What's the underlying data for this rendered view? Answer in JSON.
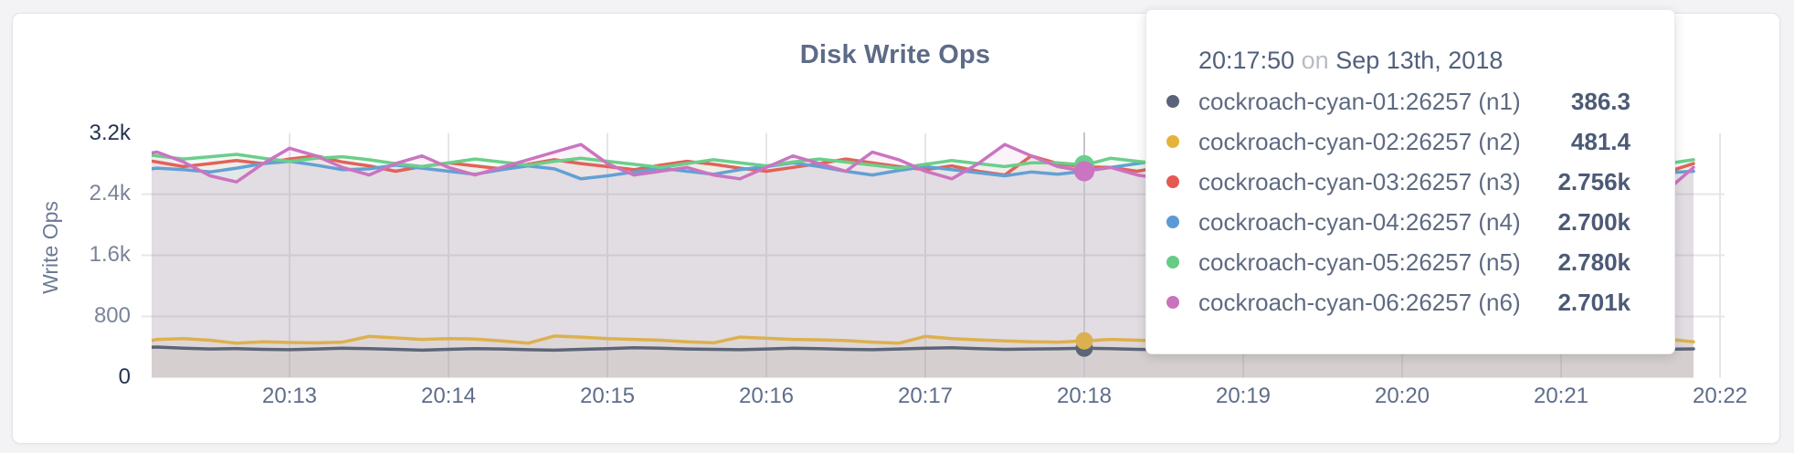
{
  "card": {
    "background": "#ffffff"
  },
  "chart": {
    "title": "Disk Write Ops",
    "y_axis": {
      "label": "Write Ops",
      "ticks": [
        {
          "label": "3.2k",
          "value": 3200,
          "emphasis": true
        },
        {
          "label": "2.4k",
          "value": 2400,
          "emphasis": false
        },
        {
          "label": "1.6k",
          "value": 1600,
          "emphasis": false
        },
        {
          "label": "800",
          "value": 800,
          "emphasis": false
        },
        {
          "label": "0",
          "value": 0,
          "emphasis": true
        }
      ]
    },
    "x_axis": {
      "ticks": [
        "20:13",
        "20:14",
        "20:15",
        "20:16",
        "20:17",
        "20:18",
        "20:19",
        "20:20",
        "20:21",
        "20:22"
      ]
    }
  },
  "tooltip": {
    "time": "20:17:50",
    "on_word": "on",
    "date": "Sep 13th, 2018",
    "rows": [
      {
        "name": "cockroach-cyan-01:26257 (n1)",
        "value": "386.3",
        "color": "#5a6379"
      },
      {
        "name": "cockroach-cyan-02:26257 (n2)",
        "value": "481.4",
        "color": "#e5b33c"
      },
      {
        "name": "cockroach-cyan-03:26257 (n3)",
        "value": "2.756k",
        "color": "#e25a52"
      },
      {
        "name": "cockroach-cyan-04:26257 (n4)",
        "value": "2.700k",
        "color": "#5b9bd3"
      },
      {
        "name": "cockroach-cyan-05:26257 (n5)",
        "value": "2.780k",
        "color": "#66cc85"
      },
      {
        "name": "cockroach-cyan-06:26257 (n6)",
        "value": "2.701k",
        "color": "#c873be"
      }
    ]
  },
  "chart_data": {
    "type": "line",
    "title": "Disk Write Ops",
    "xlabel": "",
    "ylabel": "Write Ops",
    "ylim": [
      0,
      3200
    ],
    "grid": true,
    "x_start_time": "20:12:00",
    "x_interval_seconds": 10,
    "x_tick_labels": [
      "20:13",
      "20:14",
      "20:15",
      "20:16",
      "20:17",
      "20:18",
      "20:19",
      "20:20",
      "20:21",
      "20:22"
    ],
    "hover": {
      "index": 36,
      "time": "20:17:50",
      "date": "Sep 13th, 2018",
      "values": {
        "n1": 386.3,
        "n2": 481.4,
        "n3": 2756,
        "n4": 2700,
        "n5": 2780,
        "n6": 2701
      }
    },
    "series": [
      {
        "name": "cockroach-cyan-01:26257 (n1)",
        "color": "#5c6578",
        "dot_radius": 9.5,
        "values": [
          390,
          400,
          385,
          375,
          380,
          370,
          365,
          375,
          385,
          380,
          370,
          360,
          370,
          380,
          375,
          365,
          360,
          370,
          380,
          390,
          385,
          375,
          370,
          365,
          375,
          385,
          380,
          370,
          365,
          375,
          385,
          390,
          380,
          370,
          375,
          378,
          386.3,
          380,
          370,
          365,
          375,
          385,
          380,
          370,
          365,
          370,
          380,
          390,
          385,
          375,
          370,
          365,
          375,
          385,
          398,
          405,
          390,
          380,
          372,
          376
        ]
      },
      {
        "name": "cockroach-cyan-02:26257 (n2)",
        "color": "#ddb04f",
        "dot_radius": 9.5,
        "values": [
          430,
          500,
          510,
          490,
          450,
          470,
          460,
          455,
          465,
          540,
          520,
          500,
          510,
          505,
          480,
          450,
          545,
          530,
          510,
          500,
          490,
          470,
          455,
          530,
          515,
          500,
          495,
          485,
          465,
          450,
          540,
          510,
          495,
          480,
          470,
          465,
          481.4,
          500,
          490,
          480,
          470,
          460,
          520,
          505,
          490,
          480,
          470,
          520,
          500,
          485,
          470,
          460,
          510,
          525,
          545,
          500,
          480,
          530,
          505,
          470
        ]
      },
      {
        "name": "cockroach-cyan-03:26257 (n3)",
        "color": "#e2625a",
        "dot_radius": 11,
        "values": [
          2880,
          2820,
          2760,
          2800,
          2840,
          2800,
          2860,
          2900,
          2820,
          2770,
          2700,
          2760,
          2810,
          2770,
          2730,
          2790,
          2850,
          2800,
          2760,
          2720,
          2780,
          2830,
          2790,
          2740,
          2700,
          2750,
          2800,
          2860,
          2810,
          2760,
          2720,
          2770,
          2700,
          2650,
          2900,
          2800,
          2756,
          2750,
          2700,
          2760,
          2820,
          2770,
          2730,
          2790,
          2840,
          2800,
          2750,
          2710,
          2770,
          2830,
          2780,
          2740,
          2700,
          2760,
          2810,
          2760,
          2720,
          2780,
          2690,
          2800
        ]
      },
      {
        "name": "cockroach-cyan-04:26257 (n4)",
        "color": "#63a0d4",
        "dot_radius": 11,
        "values": [
          2700,
          2740,
          2720,
          2690,
          2740,
          2800,
          2830,
          2780,
          2720,
          2730,
          2780,
          2740,
          2700,
          2660,
          2720,
          2770,
          2730,
          2600,
          2640,
          2690,
          2740,
          2700,
          2660,
          2720,
          2760,
          2810,
          2760,
          2700,
          2650,
          2710,
          2760,
          2720,
          2680,
          2640,
          2690,
          2660,
          2700,
          2750,
          2800,
          2850,
          2790,
          2730,
          2680,
          2640,
          2700,
          2750,
          2710,
          2670,
          2720,
          2770,
          2730,
          2690,
          2650,
          2700,
          2740,
          2700,
          2660,
          2710,
          2680,
          2700
        ]
      },
      {
        "name": "cockroach-cyan-05:26257 (n5)",
        "color": "#6bce8b",
        "dot_radius": 11,
        "values": [
          2940,
          2900,
          2860,
          2890,
          2920,
          2870,
          2830,
          2870,
          2890,
          2850,
          2800,
          2760,
          2810,
          2860,
          2820,
          2780,
          2830,
          2870,
          2830,
          2790,
          2750,
          2800,
          2850,
          2810,
          2770,
          2820,
          2860,
          2820,
          2780,
          2740,
          2790,
          2840,
          2800,
          2760,
          2810,
          2810,
          2780,
          2870,
          2830,
          2790,
          2750,
          2800,
          2840,
          2800,
          2760,
          2810,
          2850,
          2810,
          2770,
          2820,
          2860,
          2820,
          2780,
          2740,
          2790,
          2830,
          2790,
          2750,
          2800,
          2850
        ]
      },
      {
        "name": "cockroach-cyan-06:26257 (n6)",
        "color": "#cb74c1",
        "dot_radius": 11,
        "values": [
          2900,
          2950,
          2820,
          2640,
          2560,
          2800,
          3000,
          2900,
          2750,
          2650,
          2800,
          2900,
          2750,
          2650,
          2750,
          2850,
          2950,
          3050,
          2800,
          2650,
          2700,
          2750,
          2650,
          2600,
          2750,
          2900,
          2800,
          2700,
          2950,
          2850,
          2700,
          2600,
          2800,
          3050,
          2900,
          2760,
          2701,
          2750,
          2650,
          2600,
          2700,
          2850,
          2750,
          2650,
          2900,
          3000,
          2800,
          2650,
          2750,
          2850,
          2700,
          2600,
          2700,
          2800,
          2900,
          2750,
          2500,
          2650,
          2450,
          2750
        ]
      }
    ]
  },
  "colors": {
    "grid": "#e6e6e9",
    "crosshair": "#c4c6cb",
    "fill_opacity": 0.085
  }
}
